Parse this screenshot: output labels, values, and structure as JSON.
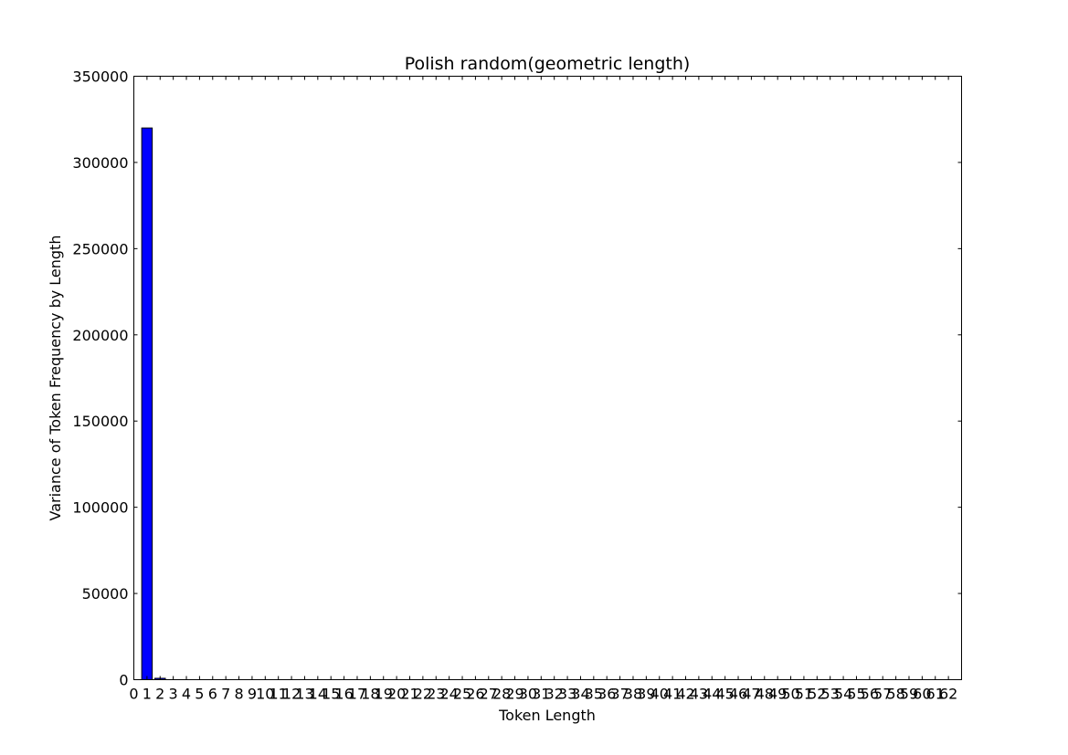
{
  "chart_data": {
    "type": "bar",
    "title": "Polish random(geometric length)",
    "xlabel": "Token Length",
    "ylabel": "Variance of Token Frequency by Length",
    "xlim": [
      0,
      63
    ],
    "ylim": [
      0,
      350000
    ],
    "x_ticks": [
      "0",
      "1",
      "2",
      "3",
      "4",
      "5",
      "6",
      "7",
      "8",
      "9",
      "10",
      "11",
      "12",
      "13",
      "14",
      "15",
      "16",
      "17",
      "18",
      "19",
      "20",
      "21",
      "22",
      "23",
      "24",
      "25",
      "26",
      "27",
      "28",
      "29",
      "30",
      "31",
      "32",
      "33",
      "34",
      "35",
      "36",
      "37",
      "38",
      "39",
      "40",
      "41",
      "42",
      "43",
      "44",
      "45",
      "46",
      "47",
      "48",
      "49",
      "50",
      "51",
      "52",
      "53",
      "54",
      "55",
      "56",
      "57",
      "58",
      "59",
      "60",
      "61",
      "62"
    ],
    "y_ticks": [
      "0",
      "50000",
      "100000",
      "150000",
      "200000",
      "250000",
      "300000",
      "350000"
    ],
    "bar_color": "#0000ff",
    "bars": [
      {
        "x": 1,
        "value": 320000
      },
      {
        "x": 2,
        "value": 800
      }
    ],
    "grid": false,
    "legend": "none"
  }
}
